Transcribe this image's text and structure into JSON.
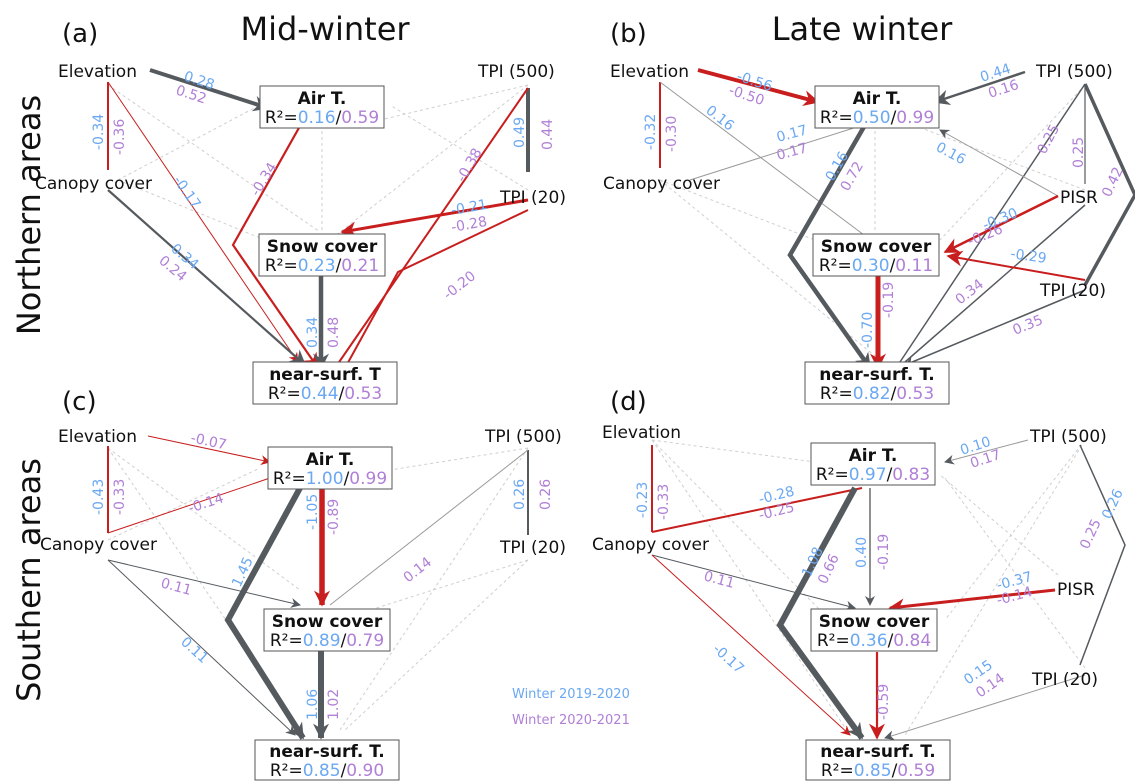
{
  "titles": {
    "col_left": "Mid-winter",
    "col_right": "Late winter",
    "row_top": "Northern areas",
    "row_bottom": "Southern areas"
  },
  "legend": {
    "series1": "Winter 2019-2020",
    "series2": "Winter 2020-2021"
  },
  "colors": {
    "positive": "#555a5f",
    "negative": "#c81e1e",
    "series1": "#6aa8f2",
    "series2": "#b07fd6",
    "nonsig": "#cfcfcf"
  },
  "panels": {
    "a": {
      "label": "(a)",
      "vars": {
        "elevation": "Elevation",
        "canopy": "Canopy cover",
        "tpi500": "TPI (500)",
        "tpi20": "TPI (20)"
      },
      "air": {
        "title": "Air T.",
        "r2_prefix": "R²=",
        "r2_v1": "0.16",
        "sep": "/",
        "r2_v2": "0.59"
      },
      "snow": {
        "title": "Snow cover",
        "r2_prefix": "R²=",
        "r2_v1": "0.23",
        "sep": "/",
        "r2_v2": "0.21"
      },
      "surf": {
        "title": "near-surf. T",
        "r2_prefix": "R²=",
        "r2_v1": "0.44",
        "sep": "/",
        "r2_v2": "0.53"
      },
      "coefs": [
        "0.28",
        "0.52",
        "-0.34",
        "-0.36",
        "-0.17",
        "0.34",
        "0.24",
        "-0.34",
        "0.49",
        "0.44",
        "-0.38",
        "-0.21",
        "-0.28",
        "-0.20",
        "0.34",
        "0.48"
      ]
    },
    "b": {
      "label": "(b)",
      "vars": {
        "elevation": "Elevation",
        "canopy": "Canopy cover",
        "tpi500": "TPI (500)",
        "pisr": "PISR",
        "tpi20": "TPI (20)"
      },
      "air": {
        "title": "Air T.",
        "r2_prefix": "R²=",
        "r2_v1": "0.50",
        "sep": "/",
        "r2_v2": "0.99"
      },
      "snow": {
        "title": "Snow cover",
        "r2_prefix": "R²=",
        "r2_v1": "0.30",
        "sep": "/",
        "r2_v2": "0.11"
      },
      "surf": {
        "title": "near-surf. T.",
        "r2_prefix": "R²=",
        "r2_v1": "0.82",
        "sep": "/",
        "r2_v2": "0.53"
      },
      "coefs": [
        "-0.56",
        "-0.50",
        "0.16",
        "-0.32",
        "-0.30",
        "0.17",
        "0.17",
        "0.44",
        "0.16",
        "0.16",
        "0.16",
        "0.72",
        "0.25",
        "0.25",
        "0.42",
        "-0.30",
        "-0.26",
        "-0.29",
        "0.34",
        "0.35",
        "-0.70",
        "-0.19"
      ]
    },
    "c": {
      "label": "(c)",
      "vars": {
        "elevation": "Elevation",
        "canopy": "Canopy cover",
        "tpi500": "TPI (500)",
        "tpi20": "TPI (20)"
      },
      "air": {
        "title": "Air T.",
        "r2_prefix": "R²=",
        "r2_v1": "1.00",
        "sep": "/",
        "r2_v2": "0.99"
      },
      "snow": {
        "title": "Snow cover",
        "r2_prefix": "R²=",
        "r2_v1": "0.89",
        "sep": "/",
        "r2_v2": "0.79"
      },
      "surf": {
        "title": "near-surf. T.",
        "r2_prefix": "R²=",
        "r2_v1": "0.85",
        "sep": "/",
        "r2_v2": "0.90"
      },
      "coefs": [
        "-0.07",
        "-0.43",
        "-0.33",
        "-0.14",
        "1.45",
        "-1.05",
        "-0.89",
        "0.26",
        "0.26",
        "0.14",
        "0.11",
        "0.11",
        "1.06",
        "1.02"
      ]
    },
    "d": {
      "label": "(d)",
      "vars": {
        "elevation": "Elevation",
        "canopy": "Canopy cover",
        "tpi500": "TPI (500)",
        "pisr": "PISR",
        "tpi20": "TPI (20)"
      },
      "air": {
        "title": "Air T.",
        "r2_prefix": "R²=",
        "r2_v1": "0.97",
        "sep": "/",
        "r2_v2": "0.83"
      },
      "snow": {
        "title": "Snow cover",
        "r2_prefix": "R²=",
        "r2_v1": "0.36",
        "sep": "/",
        "r2_v2": "0.84"
      },
      "surf": {
        "title": "near-surf. T.",
        "r2_prefix": "R²=",
        "r2_v1": "0.85",
        "sep": "/",
        "r2_v2": "0.59"
      },
      "coefs": [
        "0.10",
        "0.17",
        "-0.23",
        "-0.33",
        "-0.28",
        "-0.25",
        "1.08",
        "0.66",
        "0.40",
        "-0.19",
        "0.25",
        "0.26",
        "-0.37",
        "-0.14",
        "0.11",
        "-0.17",
        "0.15",
        "0.14",
        "-0.59"
      ]
    }
  }
}
